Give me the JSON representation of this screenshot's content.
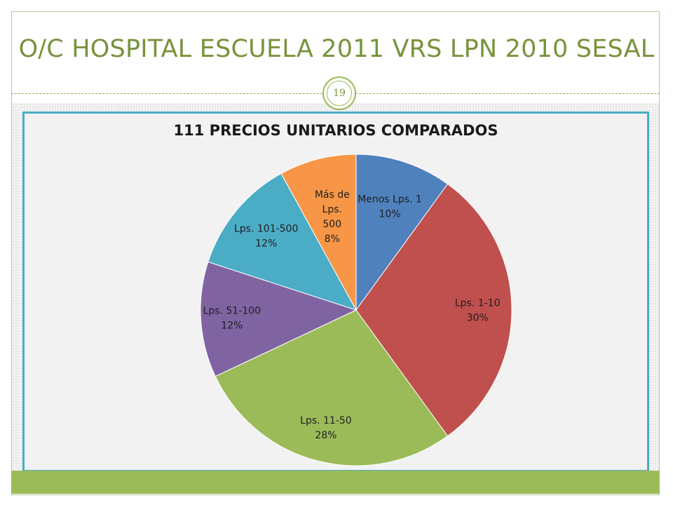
{
  "slide": {
    "title": "O/C HOSPITAL ESCUELA 2011 VRS LPN 2010 SESAL",
    "page_number": "19"
  },
  "colors": {
    "accent": "#9bbb59",
    "title": "#77933c",
    "chart_border": "#4bacc6"
  },
  "chart_data": {
    "type": "pie",
    "title": "111 PRECIOS UNITARIOS COMPARADOS",
    "slices": [
      {
        "label_lines": [
          "Menos Lps. 1",
          "10%"
        ],
        "value": 10,
        "color": "#4f81bd"
      },
      {
        "label_lines": [
          "Lps. 1-10",
          "30%"
        ],
        "value": 30,
        "color": "#c0504d"
      },
      {
        "label_lines": [
          "Lps. 11-50",
          "28%"
        ],
        "value": 28,
        "color": "#9bbb59"
      },
      {
        "label_lines": [
          "Lps. 51-100",
          "12%"
        ],
        "value": 12,
        "color": "#8064a2"
      },
      {
        "label_lines": [
          "Lps. 101-500",
          "12%"
        ],
        "value": 12,
        "color": "#4bacc6"
      },
      {
        "label_lines": [
          "Más de",
          "Lps.",
          "500",
          "8%"
        ],
        "value": 8,
        "color": "#f79646"
      }
    ]
  }
}
